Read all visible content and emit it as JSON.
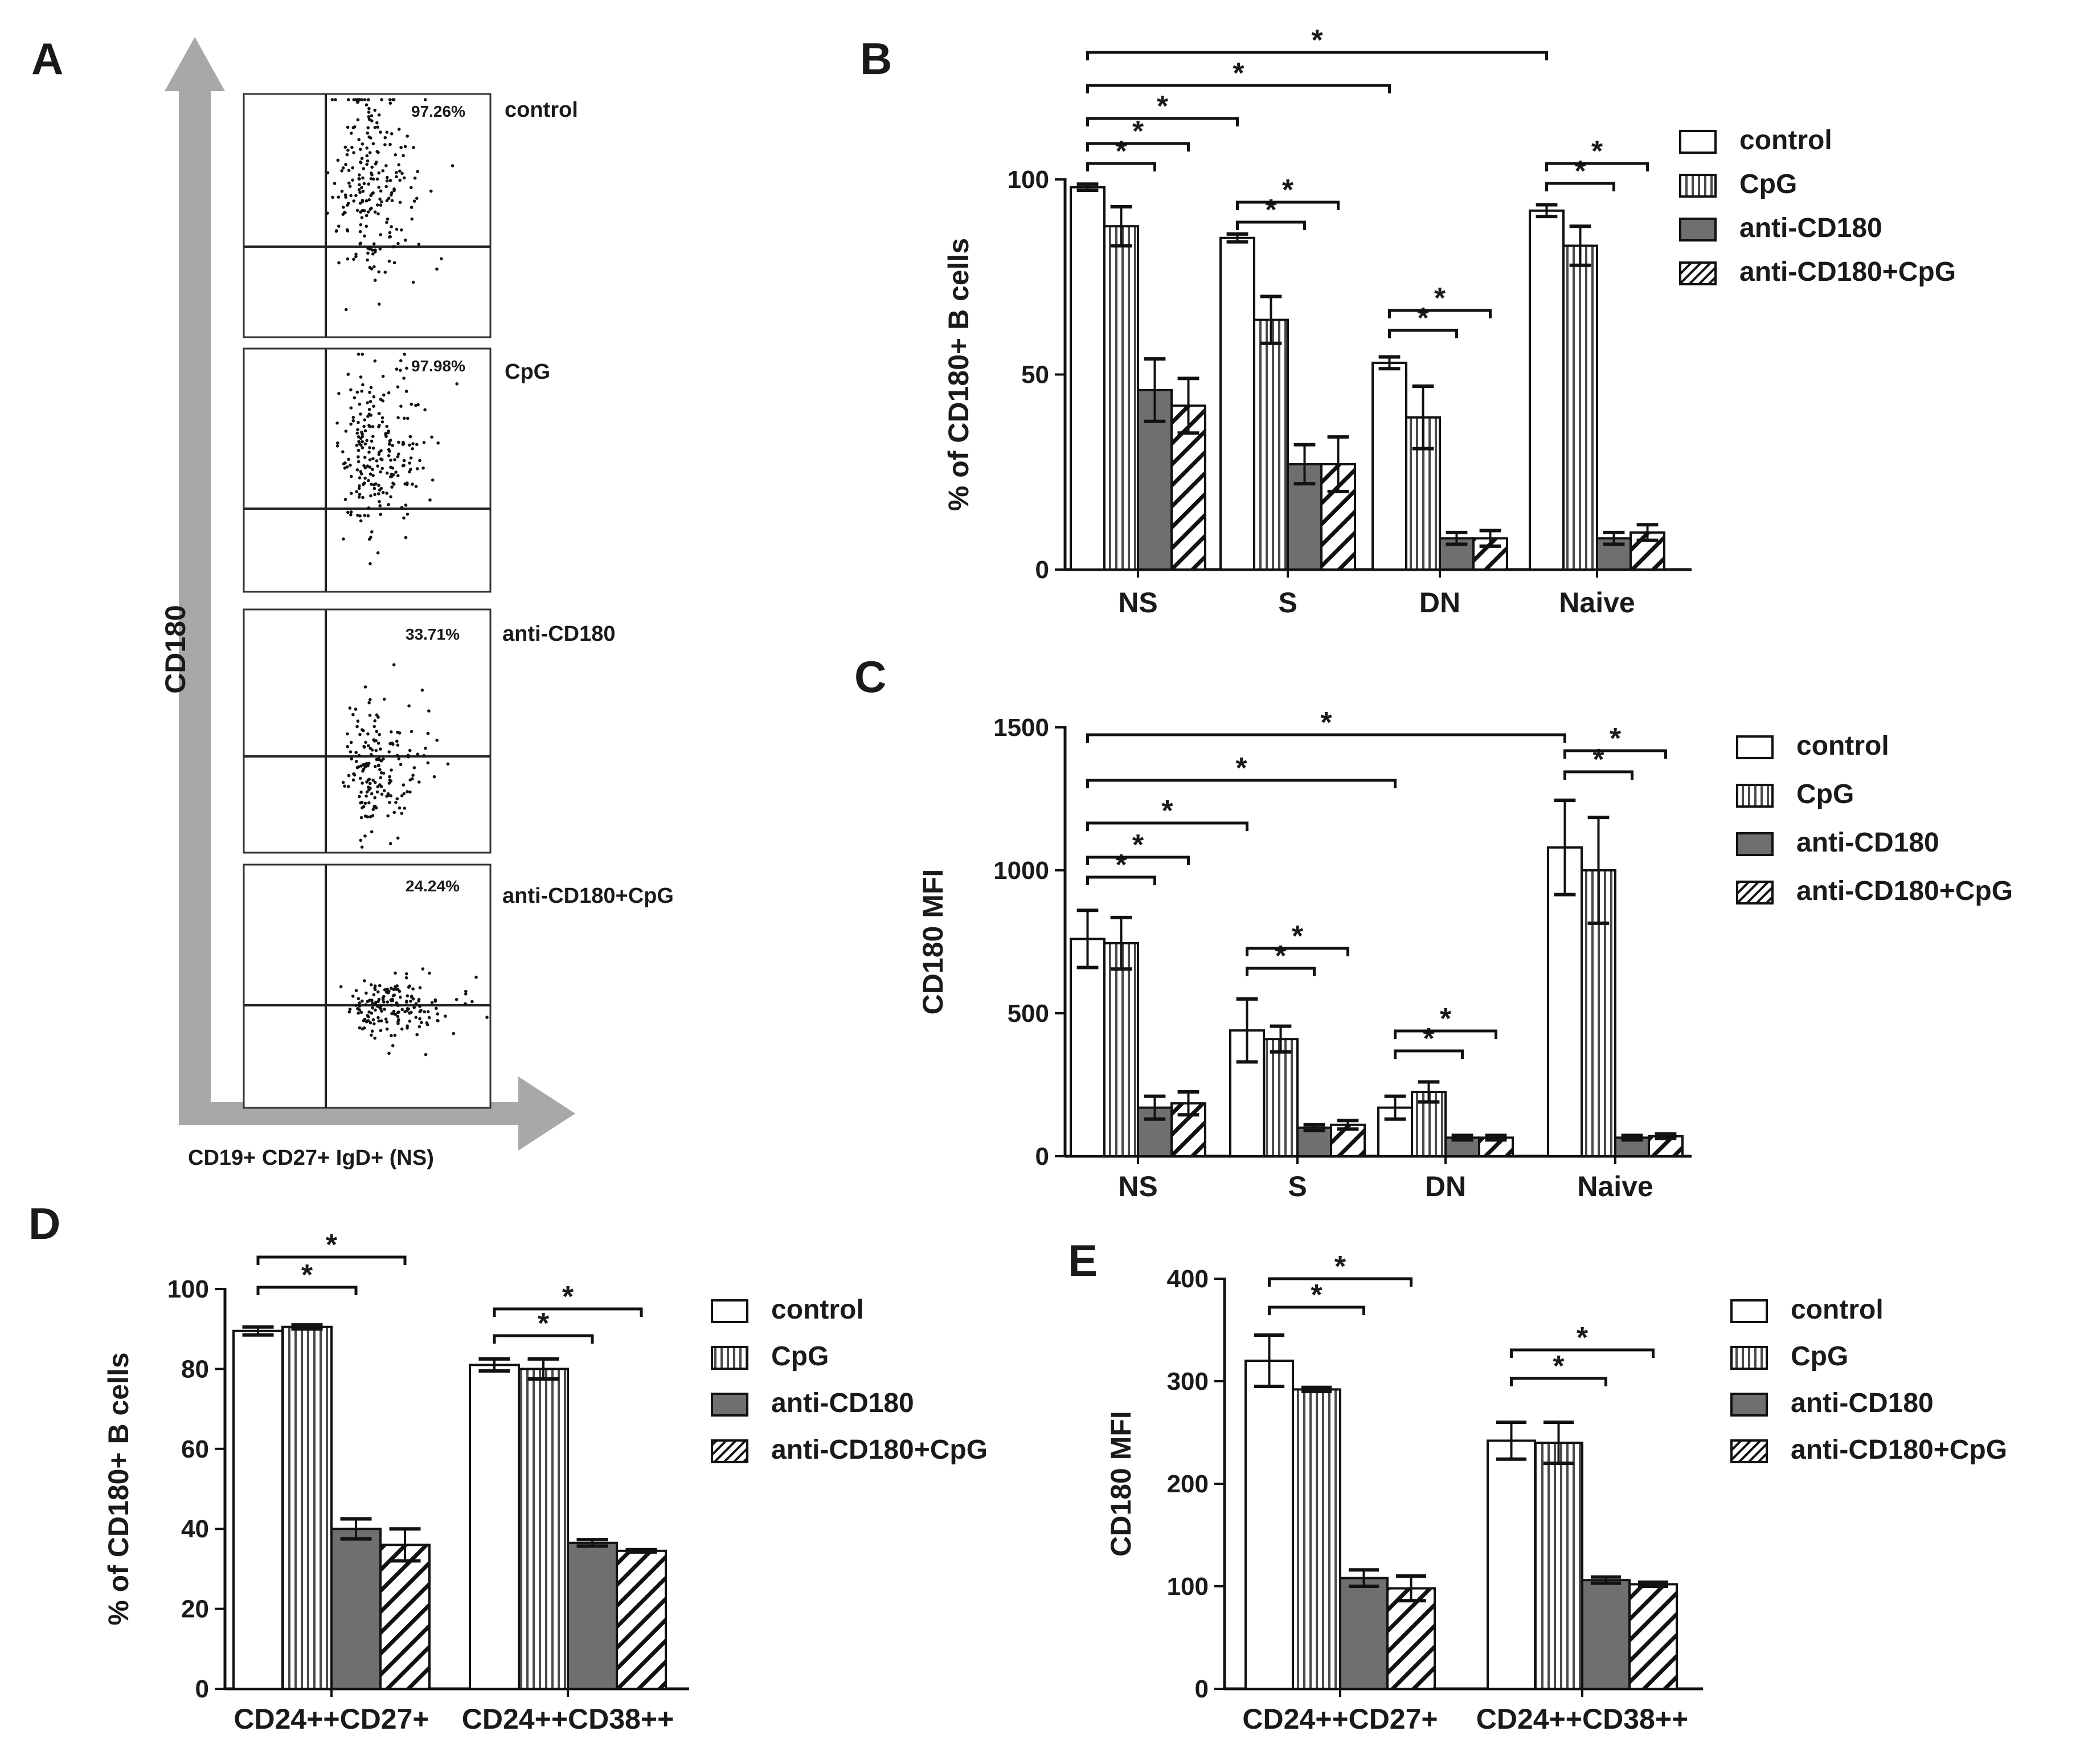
{
  "panels": {
    "A": {
      "label": "A",
      "y_axis_label": "CD180",
      "x_axis_label": "CD19+ CD27+ IgD+ (NS)",
      "plots": [
        {
          "name": "control",
          "percent": "97.26%"
        },
        {
          "name": "CpG",
          "percent": "97.98%"
        },
        {
          "name": "anti-CD180",
          "percent": "33.71%"
        },
        {
          "name": "anti-CD180+CpG",
          "percent": "24.24%"
        }
      ]
    }
  },
  "legend": [
    "control",
    "CpG",
    "anti-CD180",
    "anti-CD180+CpG"
  ],
  "chart_data": [
    {
      "panel": "B",
      "type": "bar",
      "ylabel": "% of CD180+ B cells",
      "xlabel": "",
      "categories": [
        "NS",
        "S",
        "DN",
        "Naive"
      ],
      "ylim": [
        0,
        100
      ],
      "yticks": [
        0,
        50,
        100
      ],
      "series": [
        {
          "name": "control",
          "values": [
            98,
            85,
            53,
            92
          ],
          "errors": [
            0.8,
            1,
            1.5,
            1.5
          ]
        },
        {
          "name": "CpG",
          "values": [
            88,
            64,
            39,
            83
          ],
          "errors": [
            5,
            6,
            8,
            5
          ]
        },
        {
          "name": "anti-CD180",
          "values": [
            46,
            27,
            8,
            8
          ],
          "errors": [
            8,
            5,
            1.5,
            1.5
          ]
        },
        {
          "name": "anti-CD180+CpG",
          "values": [
            42,
            27,
            8,
            9.5
          ],
          "errors": [
            7,
            7,
            2,
            2
          ]
        }
      ],
      "significance": [
        {
          "label": "*",
          "from": [
            0,
            0
          ],
          "to": [
            0,
            2
          ]
        },
        {
          "label": "*",
          "from": [
            0,
            0
          ],
          "to": [
            0,
            3
          ]
        },
        {
          "label": "*",
          "from": [
            1,
            0
          ],
          "to": [
            1,
            2
          ]
        },
        {
          "label": "*",
          "from": [
            1,
            0
          ],
          "to": [
            1,
            3
          ]
        },
        {
          "label": "*",
          "from": [
            2,
            0
          ],
          "to": [
            2,
            2
          ]
        },
        {
          "label": "*",
          "from": [
            2,
            0
          ],
          "to": [
            2,
            3
          ]
        },
        {
          "label": "*",
          "from": [
            3,
            0
          ],
          "to": [
            3,
            2
          ]
        },
        {
          "label": "*",
          "from": [
            3,
            0
          ],
          "to": [
            3,
            3
          ]
        },
        {
          "label": "*",
          "from": [
            0,
            0
          ],
          "to": [
            1,
            0
          ]
        },
        {
          "label": "*",
          "from": [
            0,
            0
          ],
          "to": [
            2,
            0
          ]
        },
        {
          "label": "*",
          "from": [
            0,
            0
          ],
          "to": [
            3,
            0
          ]
        }
      ]
    },
    {
      "panel": "C",
      "type": "bar",
      "ylabel": "CD180 MFI",
      "xlabel": "",
      "categories": [
        "NS",
        "S",
        "DN",
        "Naive"
      ],
      "ylim": [
        0,
        1500
      ],
      "yticks": [
        0,
        500,
        1000,
        1500
      ],
      "series": [
        {
          "name": "control",
          "values": [
            760,
            440,
            170,
            1080
          ],
          "errors": [
            100,
            110,
            40,
            165
          ]
        },
        {
          "name": "CpG",
          "values": [
            745,
            410,
            225,
            1000
          ],
          "errors": [
            90,
            45,
            35,
            185
          ]
        },
        {
          "name": "anti-CD180",
          "values": [
            170,
            100,
            65,
            65
          ],
          "errors": [
            40,
            10,
            8,
            8
          ]
        },
        {
          "name": "anti-CD180+CpG",
          "values": [
            185,
            110,
            65,
            70
          ],
          "errors": [
            40,
            15,
            8,
            8
          ]
        }
      ],
      "significance": [
        {
          "label": "*",
          "from": [
            0,
            0
          ],
          "to": [
            0,
            2
          ]
        },
        {
          "label": "*",
          "from": [
            0,
            0
          ],
          "to": [
            0,
            3
          ]
        },
        {
          "label": "*",
          "from": [
            1,
            0
          ],
          "to": [
            1,
            2
          ]
        },
        {
          "label": "*",
          "from": [
            1,
            0
          ],
          "to": [
            1,
            3
          ]
        },
        {
          "label": "*",
          "from": [
            2,
            0
          ],
          "to": [
            2,
            2
          ]
        },
        {
          "label": "*",
          "from": [
            2,
            0
          ],
          "to": [
            2,
            3
          ]
        },
        {
          "label": "*",
          "from": [
            3,
            0
          ],
          "to": [
            3,
            2
          ]
        },
        {
          "label": "*",
          "from": [
            3,
            0
          ],
          "to": [
            3,
            3
          ]
        },
        {
          "label": "*",
          "from": [
            0,
            0
          ],
          "to": [
            1,
            0
          ]
        },
        {
          "label": "*",
          "from": [
            0,
            0
          ],
          "to": [
            2,
            0
          ]
        },
        {
          "label": "*",
          "from": [
            0,
            0
          ],
          "to": [
            3,
            0
          ]
        }
      ]
    },
    {
      "panel": "D",
      "type": "bar",
      "ylabel": "% of CD180+ B cells",
      "xlabel": "",
      "categories": [
        "CD24++CD27+",
        "CD24++CD38++"
      ],
      "ylim": [
        0,
        100
      ],
      "yticks": [
        0,
        20,
        40,
        60,
        80,
        100
      ],
      "series": [
        {
          "name": "control",
          "values": [
            89.5,
            81
          ],
          "errors": [
            1,
            1.5
          ]
        },
        {
          "name": "CpG",
          "values": [
            90.5,
            80
          ],
          "errors": [
            0.5,
            2.5
          ]
        },
        {
          "name": "anti-CD180",
          "values": [
            40,
            36.5
          ],
          "errors": [
            2.5,
            0.8
          ]
        },
        {
          "name": "anti-CD180+CpG",
          "values": [
            36,
            34.5
          ],
          "errors": [
            4,
            0.3
          ]
        }
      ],
      "significance": [
        {
          "label": "*",
          "from": [
            0,
            0
          ],
          "to": [
            0,
            2
          ]
        },
        {
          "label": "*",
          "from": [
            0,
            0
          ],
          "to": [
            0,
            3
          ]
        },
        {
          "label": "*",
          "from": [
            1,
            0
          ],
          "to": [
            1,
            2
          ]
        },
        {
          "label": "*",
          "from": [
            1,
            0
          ],
          "to": [
            1,
            3
          ]
        }
      ]
    },
    {
      "panel": "E",
      "type": "bar",
      "ylabel": "CD180  MFI",
      "xlabel": "",
      "categories": [
        "CD24++CD27+",
        "CD24++CD38++"
      ],
      "ylim": [
        0,
        400
      ],
      "yticks": [
        0,
        100,
        200,
        300,
        400
      ],
      "series": [
        {
          "name": "control",
          "values": [
            320,
            242
          ],
          "errors": [
            25,
            18
          ]
        },
        {
          "name": "CpG",
          "values": [
            292,
            240
          ],
          "errors": [
            2,
            20
          ]
        },
        {
          "name": "anti-CD180",
          "values": [
            108,
            106
          ],
          "errors": [
            8,
            3
          ]
        },
        {
          "name": "anti-CD180+CpG",
          "values": [
            98,
            102
          ],
          "errors": [
            12,
            2
          ]
        }
      ],
      "significance": [
        {
          "label": "*",
          "from": [
            0,
            0
          ],
          "to": [
            0,
            2
          ]
        },
        {
          "label": "*",
          "from": [
            0,
            0
          ],
          "to": [
            0,
            3
          ]
        },
        {
          "label": "*",
          "from": [
            1,
            0
          ],
          "to": [
            1,
            2
          ]
        },
        {
          "label": "*",
          "from": [
            1,
            0
          ],
          "to": [
            1,
            3
          ]
        }
      ]
    }
  ]
}
